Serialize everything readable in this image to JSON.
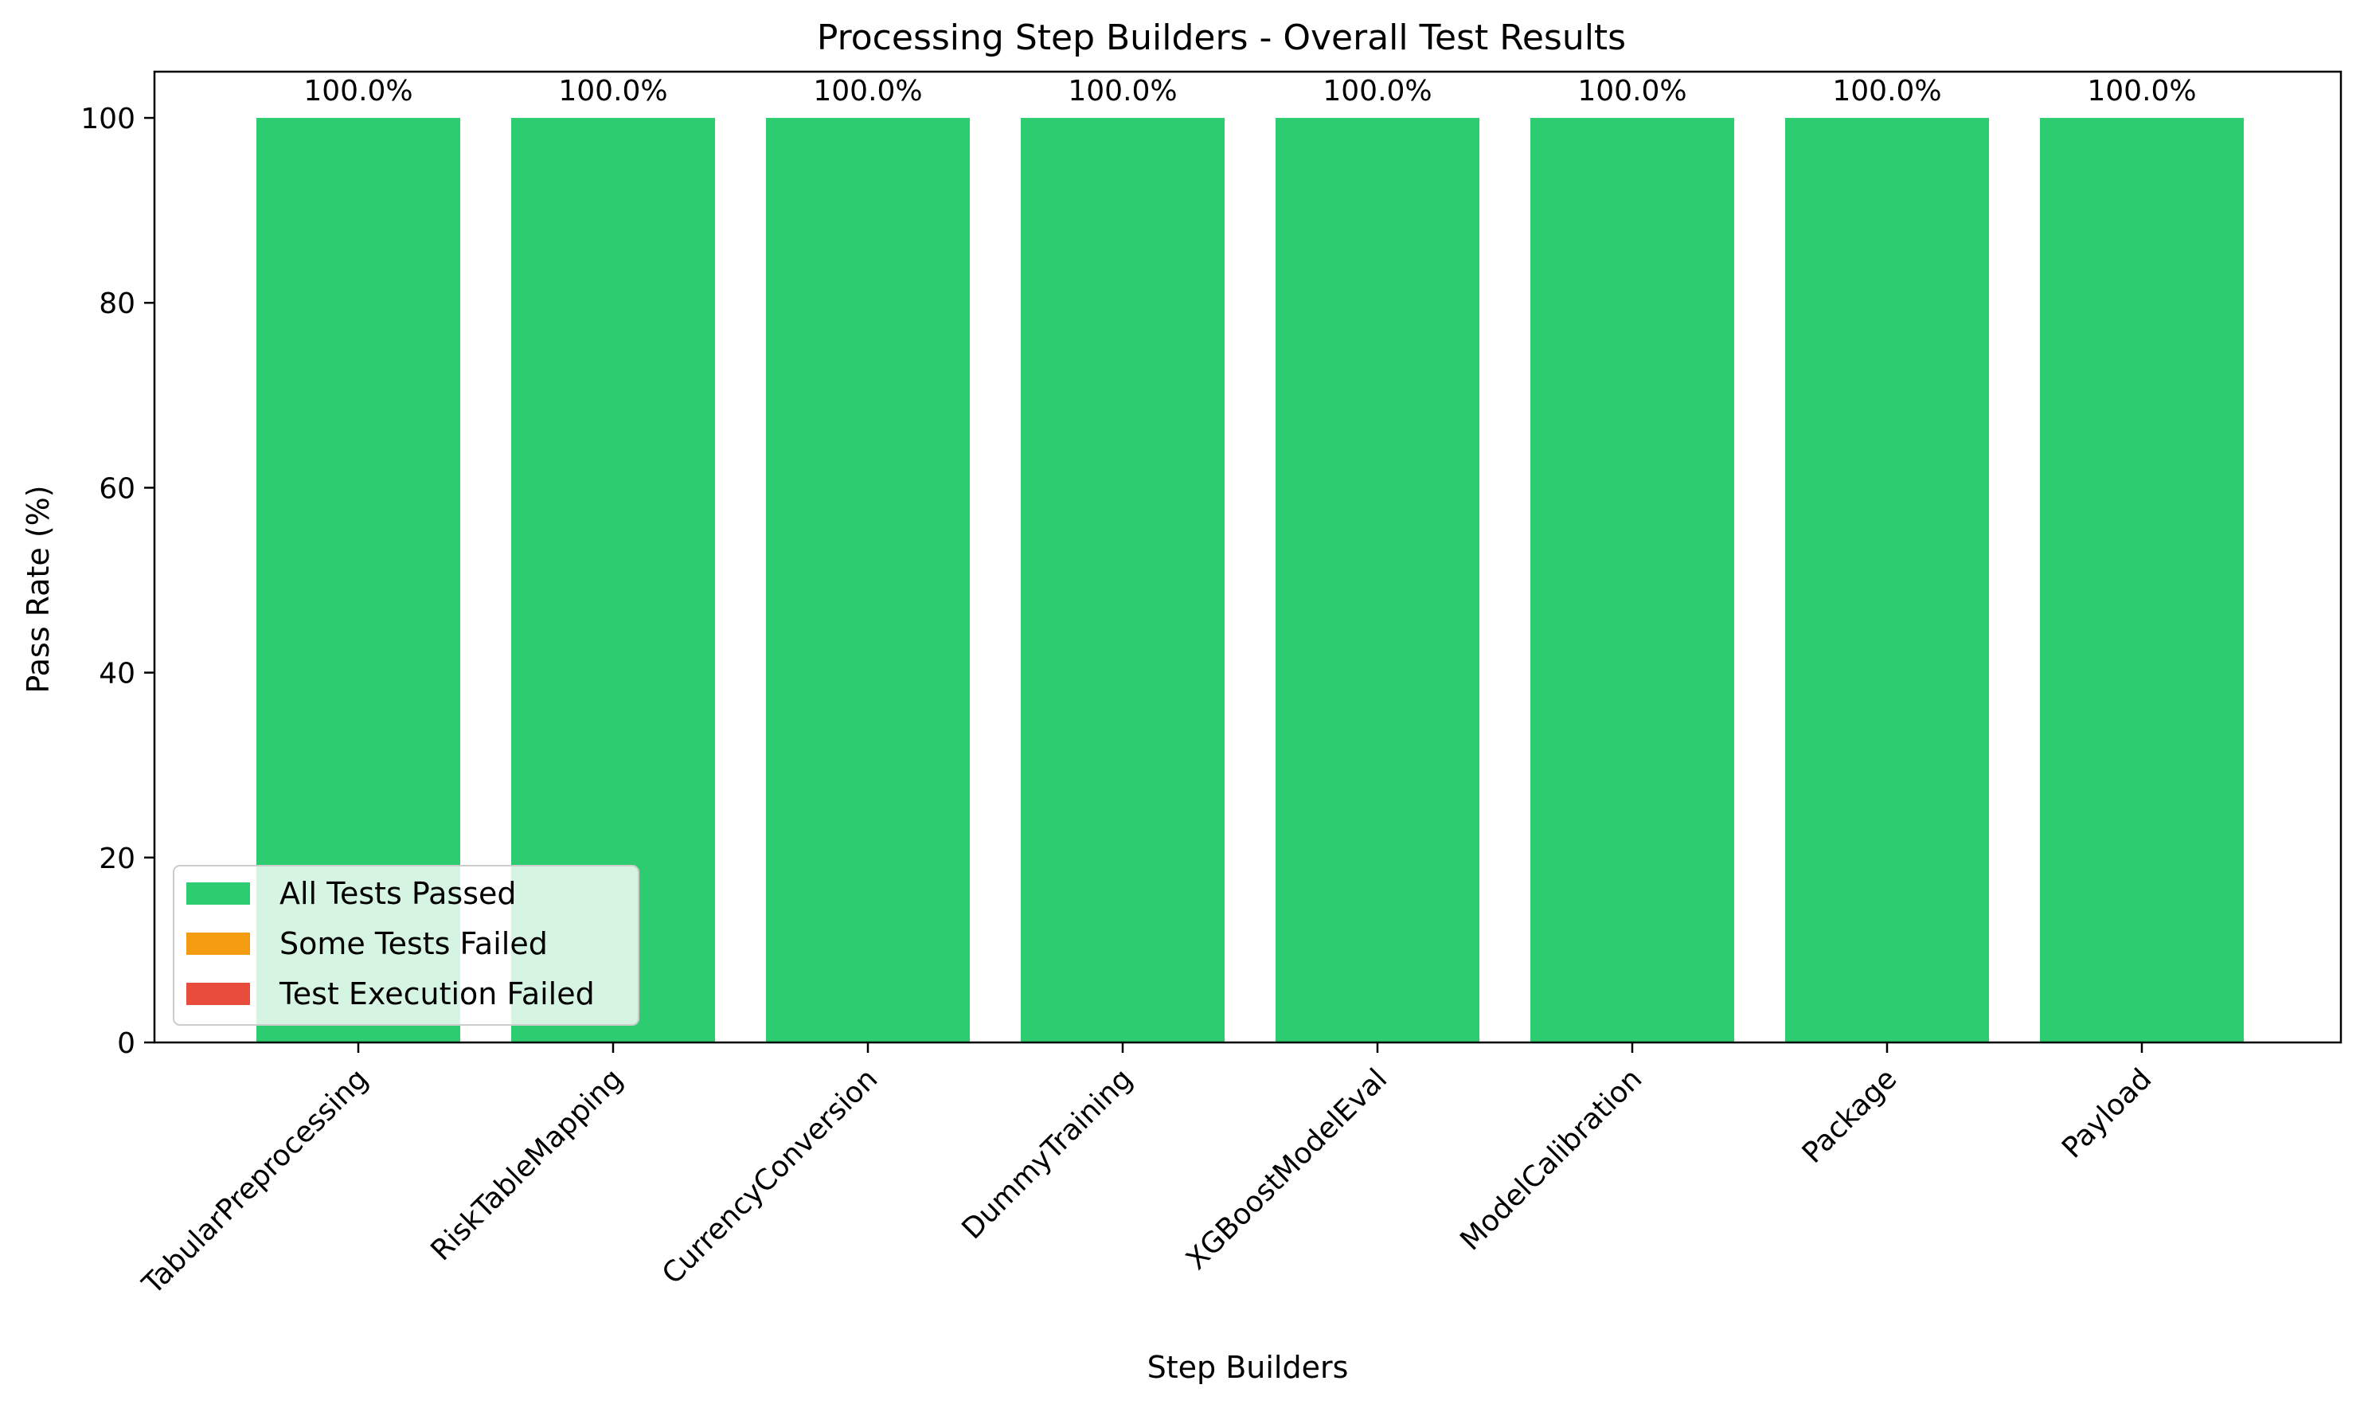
{
  "chart_data": {
    "type": "bar",
    "title": "Processing Step Builders - Overall Test Results",
    "xlabel": "Step Builders",
    "ylabel": "Pass Rate (%)",
    "categories": [
      "TabularPreprocessing",
      "RiskTableMapping",
      "CurrencyConversion",
      "DummyTraining",
      "XGBoostModelEval",
      "ModelCalibration",
      "Package",
      "Payload"
    ],
    "values": [
      100.0,
      100.0,
      100.0,
      100.0,
      100.0,
      100.0,
      100.0,
      100.0
    ],
    "value_labels": [
      "100.0%",
      "100.0%",
      "100.0%",
      "100.0%",
      "100.0%",
      "100.0%",
      "100.0%",
      "100.0%"
    ],
    "bar_status": [
      "all-passed",
      "all-passed",
      "all-passed",
      "all-passed",
      "all-passed",
      "all-passed",
      "all-passed",
      "all-passed"
    ],
    "ylim": [
      0,
      105
    ],
    "yticks": [
      0,
      20,
      40,
      60,
      80,
      100
    ],
    "grid": false,
    "legend": {
      "placement": "lower-left",
      "entries": [
        {
          "key": "all-passed",
          "label": "All Tests Passed",
          "color": "#2ecc71"
        },
        {
          "key": "some-failed",
          "label": "Some Tests Failed",
          "color": "#f39c12"
        },
        {
          "key": "execution-failed",
          "label": "Test Execution Failed",
          "color": "#e74c3c"
        }
      ]
    }
  }
}
